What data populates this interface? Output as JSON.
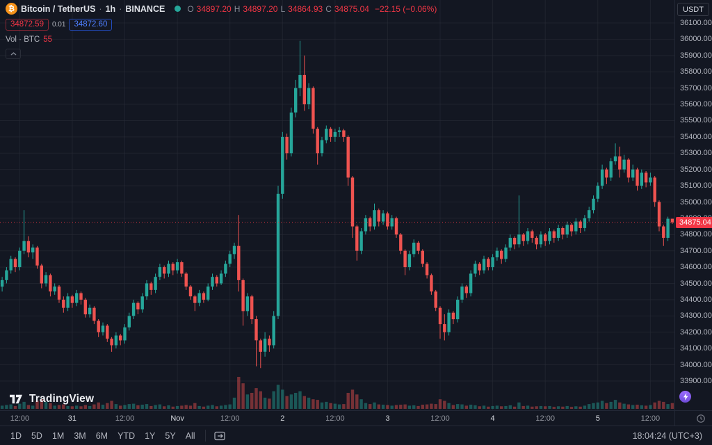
{
  "header": {
    "symbol_title": "Bitcoin / TetherUS",
    "sep": "·",
    "interval": "1h",
    "exchange": "BINANCE",
    "ohlc": {
      "o_label": "O",
      "o": "34897.20",
      "h_label": "H",
      "h": "34897.20",
      "l_label": "L",
      "l": "34864.93",
      "c_label": "C",
      "c": "34875.04",
      "change": "−22.15 (−0.06%)"
    },
    "sell_price": "34872.59",
    "spread": "0.01",
    "buy_price": "34872.60",
    "volume_label": "Vol · BTC",
    "volume_value": "55",
    "currency_button": "USDT",
    "btc_symbol": "₿"
  },
  "watermark": {
    "brand": "TradingView"
  },
  "toolbar_bottom": {
    "ranges": [
      "1D",
      "5D",
      "1M",
      "3M",
      "6M",
      "YTD",
      "1Y",
      "5Y",
      "All"
    ],
    "clock": "18:04:24 (UTC+3)"
  },
  "chart_data": {
    "type": "candlestick+volume",
    "symbol": "BTCUSDT",
    "exchange": "BINANCE",
    "interval": "1h",
    "ylim": [
      33900,
      36100
    ],
    "grid": true,
    "last_price": 34875.04,
    "last_price_label": "34875.04",
    "price_axis_labels": [
      "36100.00",
      "36000.00",
      "35900.00",
      "35800.00",
      "35700.00",
      "35600.00",
      "35500.00",
      "35400.00",
      "35300.00",
      "35200.00",
      "35100.00",
      "35000.00",
      "34900.00",
      "34800.00",
      "34700.00",
      "34600.00",
      "34500.00",
      "34400.00",
      "34300.00",
      "34200.00",
      "34100.00",
      "34000.00",
      "33900.00"
    ],
    "time_axis": [
      {
        "t": "12:00",
        "i": 4,
        "major": false
      },
      {
        "t": "31",
        "i": 16,
        "major": true
      },
      {
        "t": "12:00",
        "i": 28,
        "major": false
      },
      {
        "t": "Nov",
        "i": 40,
        "major": true
      },
      {
        "t": "12:00",
        "i": 52,
        "major": false
      },
      {
        "t": "2",
        "i": 64,
        "major": true
      },
      {
        "t": "12:00",
        "i": 76,
        "major": false
      },
      {
        "t": "3",
        "i": 88,
        "major": true
      },
      {
        "t": "12:00",
        "i": 100,
        "major": false
      },
      {
        "t": "4",
        "i": 112,
        "major": true
      },
      {
        "t": "12:00",
        "i": 124,
        "major": false
      },
      {
        "t": "5",
        "i": 136,
        "major": true
      },
      {
        "t": "12:00",
        "i": 148,
        "major": false
      }
    ],
    "colors": {
      "up": "#26a69a",
      "down": "#ef5350",
      "up_vol": "rgba(38,166,154,0.45)",
      "down_vol": "rgba(239,83,80,0.45)",
      "grid": "rgba(42,46,57,0.55)",
      "axis_text": "#b2b5be",
      "last_line": "#f23645",
      "accent_buy": "#2962ff",
      "accent_sell": "#f23645"
    },
    "candles_format": [
      "open",
      "high",
      "low",
      "close",
      "volume_pct"
    ],
    "candles": [
      [
        34480,
        34540,
        34450,
        34520,
        10
      ],
      [
        34520,
        34600,
        34500,
        34580,
        12
      ],
      [
        34580,
        34670,
        34560,
        34650,
        14
      ],
      [
        34650,
        34660,
        34570,
        34600,
        9
      ],
      [
        34600,
        34720,
        34580,
        34700,
        16
      ],
      [
        34700,
        34950,
        34680,
        34760,
        22
      ],
      [
        34760,
        34790,
        34660,
        34690,
        12
      ],
      [
        34690,
        34740,
        34650,
        34720,
        10
      ],
      [
        34720,
        34730,
        34590,
        34610,
        25
      ],
      [
        34610,
        34620,
        34470,
        34500,
        30
      ],
      [
        34500,
        34570,
        34480,
        34550,
        22
      ],
      [
        34550,
        34560,
        34420,
        34450,
        18
      ],
      [
        34450,
        34500,
        34430,
        34480,
        10
      ],
      [
        34480,
        34490,
        34380,
        34400,
        12
      ],
      [
        34400,
        34420,
        34320,
        34350,
        14
      ],
      [
        34350,
        34440,
        34330,
        34420,
        9
      ],
      [
        34420,
        34430,
        34350,
        34380,
        8
      ],
      [
        34380,
        34460,
        34360,
        34440,
        10
      ],
      [
        34440,
        34450,
        34370,
        34400,
        8
      ],
      [
        34400,
        34410,
        34290,
        34310,
        12
      ],
      [
        34310,
        34370,
        34290,
        34350,
        9
      ],
      [
        34350,
        34360,
        34250,
        34270,
        14
      ],
      [
        34270,
        34280,
        34170,
        34200,
        20
      ],
      [
        34200,
        34260,
        34180,
        34240,
        13
      ],
      [
        34240,
        34250,
        34140,
        34160,
        18
      ],
      [
        34160,
        34170,
        34080,
        34120,
        25
      ],
      [
        34120,
        34200,
        34100,
        34180,
        15
      ],
      [
        34180,
        34190,
        34120,
        34150,
        10
      ],
      [
        34150,
        34250,
        34130,
        34230,
        12
      ],
      [
        34230,
        34320,
        34210,
        34300,
        15
      ],
      [
        34300,
        34400,
        34280,
        34380,
        16
      ],
      [
        34380,
        34390,
        34310,
        34340,
        11
      ],
      [
        34340,
        34440,
        34320,
        34420,
        13
      ],
      [
        34420,
        34520,
        34400,
        34500,
        15
      ],
      [
        34500,
        34510,
        34430,
        34460,
        9
      ],
      [
        34460,
        34560,
        34440,
        34540,
        12
      ],
      [
        34540,
        34620,
        34520,
        34600,
        14
      ],
      [
        34600,
        34610,
        34530,
        34560,
        8
      ],
      [
        34560,
        34640,
        34540,
        34620,
        11
      ],
      [
        34620,
        34630,
        34550,
        34580,
        7
      ],
      [
        34580,
        34650,
        34560,
        34630,
        9
      ],
      [
        34630,
        34640,
        34540,
        34560,
        10
      ],
      [
        34560,
        34570,
        34460,
        34480,
        12
      ],
      [
        34480,
        34490,
        34400,
        34420,
        10
      ],
      [
        34420,
        34430,
        34330,
        34380,
        18
      ],
      [
        34380,
        34460,
        34360,
        34440,
        9
      ],
      [
        34440,
        34450,
        34380,
        34400,
        7
      ],
      [
        34400,
        34500,
        34390,
        34480,
        10
      ],
      [
        34480,
        34560,
        34460,
        34540,
        12
      ],
      [
        34540,
        34550,
        34480,
        34500,
        8
      ],
      [
        34500,
        34580,
        34490,
        34560,
        10
      ],
      [
        34560,
        34640,
        34540,
        34620,
        12
      ],
      [
        34620,
        34700,
        34600,
        34680,
        14
      ],
      [
        34680,
        34750,
        34650,
        34730,
        35
      ],
      [
        34730,
        34920,
        34450,
        34520,
        100
      ],
      [
        34520,
        34530,
        34240,
        34330,
        80
      ],
      [
        34330,
        34440,
        34300,
        34420,
        45
      ],
      [
        34420,
        34430,
        34250,
        34280,
        50
      ],
      [
        34280,
        34300,
        33990,
        34150,
        65
      ],
      [
        34150,
        34160,
        33980,
        34080,
        55
      ],
      [
        34080,
        34200,
        34050,
        34160,
        35
      ],
      [
        34160,
        34180,
        34080,
        34120,
        32
      ],
      [
        34120,
        34330,
        34100,
        34300,
        55
      ],
      [
        34300,
        35100,
        34280,
        35050,
        75
      ],
      [
        35050,
        35430,
        35020,
        35400,
        60
      ],
      [
        35400,
        35420,
        35260,
        35300,
        40
      ],
      [
        35300,
        35580,
        35280,
        35550,
        45
      ],
      [
        35550,
        35750,
        35520,
        35700,
        50
      ],
      [
        35700,
        35990,
        35650,
        35780,
        55
      ],
      [
        35780,
        35900,
        35560,
        35600,
        40
      ],
      [
        35600,
        35730,
        35570,
        35700,
        35
      ],
      [
        35700,
        35710,
        35420,
        35450,
        30
      ],
      [
        35450,
        35460,
        35230,
        35300,
        28
      ],
      [
        35300,
        35400,
        35280,
        35380,
        20
      ],
      [
        35380,
        35470,
        35360,
        35450,
        22
      ],
      [
        35450,
        35460,
        35370,
        35400,
        18
      ],
      [
        35400,
        35450,
        35370,
        35430,
        16
      ],
      [
        35430,
        35460,
        35400,
        35440,
        14
      ],
      [
        35440,
        35450,
        35370,
        35400,
        15
      ],
      [
        35400,
        35410,
        35100,
        35150,
        50
      ],
      [
        35150,
        35160,
        34780,
        34850,
        60
      ],
      [
        34850,
        34860,
        34640,
        34700,
        45
      ],
      [
        34700,
        34840,
        34680,
        34820,
        30
      ],
      [
        34820,
        34920,
        34800,
        34900,
        18
      ],
      [
        34900,
        34910,
        34820,
        34850,
        15
      ],
      [
        34850,
        34990,
        34830,
        34950,
        20
      ],
      [
        34950,
        34960,
        34850,
        34880,
        14
      ],
      [
        34880,
        34950,
        34860,
        34930,
        13
      ],
      [
        34930,
        34940,
        34830,
        34850,
        12
      ],
      [
        34850,
        34920,
        34830,
        34900,
        10
      ],
      [
        34900,
        34910,
        34780,
        34800,
        12
      ],
      [
        34800,
        34810,
        34680,
        34700,
        13
      ],
      [
        34700,
        34710,
        34550,
        34600,
        14
      ],
      [
        34600,
        34700,
        34580,
        34680,
        10
      ],
      [
        34680,
        34770,
        34660,
        34750,
        11
      ],
      [
        34750,
        34760,
        34680,
        34700,
        9
      ],
      [
        34700,
        34710,
        34600,
        34620,
        13
      ],
      [
        34620,
        34630,
        34530,
        34550,
        14
      ],
      [
        34550,
        34560,
        34430,
        34450,
        16
      ],
      [
        34450,
        34460,
        34330,
        34350,
        15
      ],
      [
        34350,
        34360,
        34160,
        34250,
        30
      ],
      [
        34250,
        34310,
        34150,
        34200,
        25
      ],
      [
        34200,
        34340,
        34180,
        34320,
        18
      ],
      [
        34320,
        34330,
        34250,
        34280,
        12
      ],
      [
        34280,
        34420,
        34260,
        34400,
        15
      ],
      [
        34400,
        34500,
        34380,
        34480,
        14
      ],
      [
        34480,
        34490,
        34410,
        34440,
        10
      ],
      [
        34440,
        34580,
        34420,
        34560,
        13
      ],
      [
        34560,
        34640,
        34540,
        34620,
        11
      ],
      [
        34620,
        34630,
        34550,
        34580,
        8
      ],
      [
        34580,
        34670,
        34560,
        34650,
        10
      ],
      [
        34650,
        34660,
        34580,
        34600,
        7
      ],
      [
        34600,
        34680,
        34580,
        34660,
        9
      ],
      [
        34660,
        34720,
        34640,
        34700,
        10
      ],
      [
        34700,
        34710,
        34620,
        34650,
        8
      ],
      [
        34650,
        34740,
        34630,
        34720,
        9
      ],
      [
        34720,
        34800,
        34700,
        34780,
        11
      ],
      [
        34780,
        34790,
        34710,
        34740,
        7
      ],
      [
        34740,
        35040,
        34720,
        34800,
        20
      ],
      [
        34800,
        34810,
        34730,
        34760,
        9
      ],
      [
        34760,
        34840,
        34740,
        34820,
        10
      ],
      [
        34820,
        34830,
        34750,
        34780,
        7
      ],
      [
        34780,
        34790,
        34710,
        34740,
        8
      ],
      [
        34740,
        34820,
        34720,
        34800,
        9
      ],
      [
        34800,
        34810,
        34730,
        34760,
        8
      ],
      [
        34760,
        34840,
        34740,
        34820,
        9
      ],
      [
        34820,
        34830,
        34750,
        34780,
        6
      ],
      [
        34780,
        34860,
        34760,
        34840,
        8
      ],
      [
        34840,
        34850,
        34770,
        34800,
        7
      ],
      [
        34800,
        34880,
        34780,
        34860,
        9
      ],
      [
        34860,
        34870,
        34790,
        34820,
        6
      ],
      [
        34820,
        34900,
        34800,
        34880,
        8
      ],
      [
        34880,
        34890,
        34810,
        34840,
        7
      ],
      [
        34840,
        34920,
        34820,
        34900,
        10
      ],
      [
        34900,
        34970,
        34880,
        34950,
        15
      ],
      [
        34950,
        35040,
        34930,
        35020,
        18
      ],
      [
        35020,
        35120,
        35000,
        35100,
        20
      ],
      [
        35100,
        35230,
        35080,
        35200,
        25
      ],
      [
        35200,
        35210,
        35110,
        35150,
        18
      ],
      [
        35150,
        35270,
        35130,
        35250,
        22
      ],
      [
        35250,
        35360,
        35230,
        35280,
        28
      ],
      [
        35280,
        35340,
        35150,
        35200,
        20
      ],
      [
        35200,
        35290,
        35180,
        35260,
        16
      ],
      [
        35260,
        35270,
        35120,
        35150,
        14
      ],
      [
        35150,
        35230,
        35130,
        35200,
        12
      ],
      [
        35200,
        35210,
        35070,
        35100,
        13
      ],
      [
        35100,
        35200,
        35080,
        35180,
        11
      ],
      [
        35180,
        35190,
        35090,
        35120,
        10
      ],
      [
        35120,
        35180,
        35100,
        35150,
        12
      ],
      [
        35150,
        35160,
        34970,
        35000,
        20
      ],
      [
        35000,
        35010,
        34820,
        34850,
        25
      ],
      [
        34850,
        34860,
        34730,
        34780,
        22
      ],
      [
        34780,
        34910,
        34760,
        34897,
        15
      ],
      [
        34897.2,
        34897.2,
        34864.93,
        34875.04,
        18
      ]
    ]
  }
}
